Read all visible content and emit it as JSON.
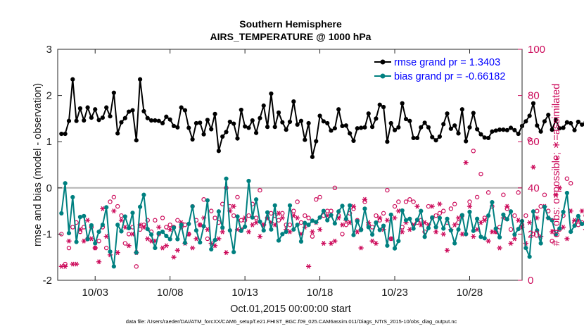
{
  "chart_data": {
    "type": "line",
    "title": "Southern Hemisphere",
    "subtitle": "AIRS_TEMPERATURE @ 1000 hPa",
    "xlabel": "Oct.01,2015 00:00:00 start",
    "ylabel": "rmse and bias (model - observation)",
    "ylabel_right": "# of obs: o=possible; ∗=assimilated",
    "footer": "data file: /Users/raeder/DAI/ATM_forcXX/CAM6_setup/f.e21.FHIST_BGC.f09_025.CAM6assim.011/Diags_NTrS_2015-10/obs_diag_output.nc",
    "xlim": [
      0.5,
      31.5
    ],
    "ylim": [
      -2,
      3
    ],
    "ylim_right": [
      0,
      100
    ],
    "xticks": [
      3,
      8,
      13,
      18,
      23,
      28
    ],
    "xtick_labels": [
      "10/03",
      "10/08",
      "10/13",
      "10/18",
      "10/23",
      "10/28"
    ],
    "yticks": [
      -2,
      -1,
      0,
      1,
      2,
      3
    ],
    "ytick_labels": [
      "-2",
      "-1",
      "0",
      "1",
      "2",
      "3"
    ],
    "yticks_right": [
      0,
      20,
      40,
      60,
      80,
      100
    ],
    "ytick_labels_right": [
      "0",
      "20",
      "40",
      "60",
      "80",
      "100"
    ],
    "legend_position": "top-right",
    "colors": {
      "rmse": "#000000",
      "bias": "#008080",
      "obs": "#cc0a5a",
      "zero_line": "#b3b3b3",
      "legend_text": "#0000ff"
    },
    "series": [
      {
        "name": "rmse grand pr = 1.3403",
        "axis": "left",
        "x_start": 0.75,
        "x_step": 0.25,
        "values": [
          1.17,
          1.17,
          1.45,
          2.35,
          1.45,
          1.72,
          1.46,
          1.74,
          1.52,
          1.7,
          1.47,
          1.52,
          1.74,
          1.55,
          2.06,
          1.18,
          1.42,
          1.51,
          1.65,
          1.68,
          1.03,
          2.35,
          1.66,
          1.51,
          1.46,
          1.46,
          1.45,
          1.4,
          1.54,
          1.48,
          1.34,
          1.31,
          1.74,
          1.68,
          1.3,
          1.05,
          1.4,
          1.41,
          1.16,
          1.47,
          1.27,
          1.6,
          0.8,
          1.11,
          1.21,
          1.43,
          1.39,
          1.07,
          1.69,
          1.33,
          1.3,
          1.46,
          1.19,
          1.51,
          1.78,
          1.32,
          2.04,
          1.32,
          1.63,
          1.42,
          1.26,
          1.43,
          1.87,
          1.37,
          1.45,
          1.04,
          1.4,
          0.67,
          1.01,
          1.56,
          1.44,
          1.4,
          1.24,
          1.29,
          1.7,
          1.34,
          1.35,
          1.18,
          1.02,
          1.29,
          1.3,
          1.31,
          1.61,
          1.32,
          1.5,
          1.8,
          1.75,
          1.0,
          1.4,
          1.25,
          1.31,
          1.83,
          1.49,
          1.45,
          1.08,
          1.08,
          1.31,
          1.41,
          1.31,
          1.1,
          1.03,
          1.11,
          1.38,
          1.61,
          1.28,
          1.35,
          1.18,
          1.7,
          1.01,
          1.31,
          1.62,
          1.27,
          1.16,
          1.09,
          1.08,
          1.22,
          1.24,
          1.26,
          1.26,
          1.25,
          1.3,
          1.25,
          1.17,
          1.34,
          1.44,
          1.56,
          1.83,
          1.35,
          1.22,
          1.44,
          1.58,
          1.26,
          1.47,
          1.29,
          1.3,
          1.42,
          1.4,
          1.25,
          1.43,
          1.37,
          1.42,
          1.36,
          1.16,
          1.19,
          1.01,
          1.37,
          1.35
        ]
      },
      {
        "name": "bias grand pr = -0.66182",
        "axis": "left",
        "x_start": 0.75,
        "x_step": 0.25,
        "values": [
          -0.55,
          0.1,
          -0.98,
          -0.2,
          -1.17,
          -0.63,
          -0.61,
          -1.11,
          -0.81,
          -1.2,
          -0.95,
          -0.8,
          -0.42,
          -1.38,
          -1.7,
          -0.8,
          -0.94,
          -0.62,
          -0.87,
          -0.54,
          -1.4,
          -0.41,
          -0.15,
          -0.89,
          -1.01,
          -1.3,
          -0.98,
          -0.95,
          -1.04,
          -1.11,
          -0.86,
          -1.11,
          -0.8,
          -1.19,
          -0.78,
          -0.4,
          -0.92,
          -1.18,
          -0.83,
          -0.27,
          -1.33,
          -1.13,
          -0.51,
          -0.86,
          0.2,
          -0.92,
          -1.39,
          -0.62,
          -0.93,
          -0.84,
          0.15,
          -0.64,
          -0.25,
          -0.73,
          -0.92,
          -0.53,
          -0.9,
          -0.38,
          -1.14,
          -1.0,
          -0.95,
          -0.38,
          -0.9,
          -0.8,
          -1.16,
          -0.76,
          -0.8,
          -0.71,
          -0.74,
          -0.64,
          -0.5,
          -0.7,
          -0.59,
          -0.77,
          -0.51,
          -0.39,
          -0.67,
          -0.38,
          -1.02,
          -0.72,
          -0.91,
          -0.45,
          -0.85,
          -1.01,
          -0.75,
          -0.91,
          -0.82,
          -1.25,
          -0.58,
          -1.31,
          -1.15,
          -0.49,
          -0.7,
          -0.67,
          -0.88,
          -0.69,
          -0.5,
          -1.06,
          -0.87,
          -0.64,
          -0.85,
          -0.65,
          -0.88,
          -0.67,
          -0.92,
          -1.2,
          -0.9,
          -0.59,
          -1.0,
          -0.52,
          -0.93,
          -0.67,
          -1.06,
          -1.09,
          -0.6,
          -0.31,
          -0.88,
          -1.07,
          -0.58,
          -0.68,
          -0.51,
          -1.01,
          -0.89,
          -0.72,
          -1.3,
          -1.49,
          -0.51,
          -0.92,
          -1.2,
          -0.41,
          -0.65,
          -0.7,
          -1.01,
          -0.88,
          -0.52,
          -0.11,
          -0.95,
          -0.82,
          -0.61,
          -0.78,
          -0.79,
          -1.03,
          -0.47,
          -0.66,
          -0.32,
          -0.33,
          -0.52,
          -0.48,
          0.02
        ]
      },
      {
        "name": "obs possible",
        "axis": "right",
        "marker": "o",
        "x_start": 0.75,
        "x_step": 0.25,
        "values": [
          20,
          7,
          14,
          23,
          25,
          21,
          23,
          18,
          23,
          14,
          17,
          23,
          14,
          34,
          36,
          32,
          28,
          16,
          20,
          23,
          6,
          22,
          24,
          26,
          21,
          26,
          20,
          27,
          23,
          24,
          23,
          26,
          23,
          24,
          20,
          32,
          26,
          24,
          35,
          18,
          30,
          27,
          25,
          33,
          40,
          32,
          28,
          36,
          26,
          26,
          28,
          33,
          27,
          39,
          24,
          27,
          29,
          28,
          26,
          29,
          24,
          24,
          30,
          34,
          25,
          28,
          27,
          19,
          35,
          36,
          28,
          30,
          30,
          40,
          28,
          20,
          24,
          29,
          31,
          26,
          22,
          34,
          24,
          23,
          28,
          26,
          29,
          39,
          18,
          32,
          34,
          23,
          34,
          35,
          34,
          25,
          26,
          21,
          32,
          27,
          28,
          29,
          30,
          25,
          31,
          33,
          25,
          28,
          20,
          34,
          56,
          36,
          46,
          27,
          38,
          32,
          21,
          23,
          37,
          31,
          22,
          28,
          38,
          24,
          28,
          61,
          20,
          30,
          32,
          37,
          30,
          17,
          53,
          22,
          28,
          44,
          42,
          25,
          24,
          25,
          28,
          30,
          40,
          29,
          33,
          47,
          32,
          36,
          45,
          39
        ]
      },
      {
        "name": "obs assimilated",
        "axis": "right",
        "marker": "*",
        "x_start": 0.75,
        "x_step": 0.25,
        "values": [
          6,
          6,
          17,
          7,
          7,
          22,
          17,
          26,
          18,
          14,
          8,
          31,
          19,
          11,
          30,
          12,
          26,
          23,
          15,
          20,
          12,
          24,
          23,
          18,
          17,
          17,
          23,
          14,
          15,
          22,
          10,
          13,
          25,
          16,
          20,
          14,
          18,
          24,
          27,
          22,
          16,
          15,
          18,
          21,
          12,
          30,
          32,
          22,
          22,
          27,
          21,
          24,
          25,
          19,
          24,
          27,
          25,
          24,
          29,
          27,
          22,
          21,
          28,
          27,
          20,
          23,
          6,
          21,
          25,
          22,
          16,
          28,
          16,
          17,
          27,
          24,
          26,
          25,
          32,
          21,
          14,
          35,
          25,
          17,
          16,
          27,
          22,
          26,
          18,
          27,
          30,
          21,
          25,
          22,
          24,
          32,
          24,
          25,
          24,
          32,
          21,
          33,
          20,
          13,
          22,
          24,
          27,
          20,
          51,
          32,
          19,
          22,
          25,
          26,
          17,
          21,
          21,
          14,
          27,
          32,
          16,
          18,
          26,
          23,
          16,
          25,
          49,
          27,
          19,
          32,
          27,
          21,
          37,
          40,
          23,
          18,
          30,
          26,
          26,
          30,
          22,
          20,
          34,
          40,
          29,
          12
        ]
      }
    ],
    "legend": [
      {
        "label": "rmse grand pr = 1.3403",
        "series": "rmse"
      },
      {
        "label": "bias grand pr = -0.66182",
        "series": "bias"
      }
    ]
  }
}
